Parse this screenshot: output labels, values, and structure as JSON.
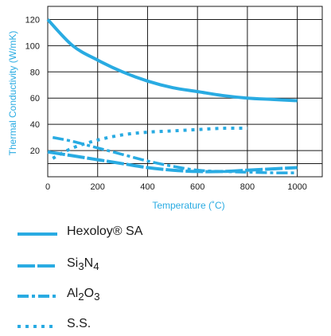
{
  "chart_data": {
    "type": "line",
    "xlabel": "Temperature (˚C)",
    "ylabel": "Thermal Conductivity (W/mK)",
    "xlim": [
      0,
      1100
    ],
    "ylim": [
      0,
      130
    ],
    "x_ticks": [
      0,
      200,
      400,
      600,
      800,
      1000
    ],
    "y_ticks": [
      20,
      40,
      60,
      80,
      100,
      120
    ],
    "grid": true,
    "series": [
      {
        "name": "Hexoloy® SA",
        "style": "solid",
        "color": "#29abe2",
        "x": [
          0,
          100,
          200,
          300,
          400,
          500,
          600,
          700,
          800,
          900,
          1000
        ],
        "y": [
          120,
          100,
          89,
          80,
          73,
          68,
          65,
          62,
          60,
          59,
          58
        ]
      },
      {
        "name": "Si3N4",
        "style": "dense-dash",
        "color": "#29abe2",
        "x": [
          0,
          100,
          200,
          300,
          400,
          500,
          600,
          700,
          800,
          900,
          1000
        ],
        "y": [
          19,
          16,
          13,
          10,
          7,
          5,
          4,
          4,
          5,
          6,
          7
        ]
      },
      {
        "name": "Al2O3",
        "style": "dash-dot",
        "color": "#29abe2",
        "x": [
          20,
          100,
          200,
          300,
          400,
          500,
          600,
          700,
          800,
          900,
          1000
        ],
        "y": [
          30,
          27,
          22,
          17,
          12,
          8,
          5,
          4,
          3.5,
          3,
          3
        ]
      },
      {
        "name": "S.S.",
        "style": "dotted",
        "color": "#29abe2",
        "x": [
          20,
          100,
          200,
          300,
          400,
          500,
          600,
          700,
          800
        ],
        "y": [
          14,
          22,
          28,
          32,
          34,
          35,
          36,
          37,
          37
        ]
      }
    ]
  },
  "legend": {
    "hexoloy_label": "Hexoloy® SA",
    "si3n4": {
      "pre": "Si",
      "sub1": "3",
      "mid": "N",
      "sub2": "4"
    },
    "al2o3": {
      "pre": "Al",
      "sub1": "2",
      "mid": "O",
      "sub2": "3"
    },
    "ss_label": "S.S."
  }
}
